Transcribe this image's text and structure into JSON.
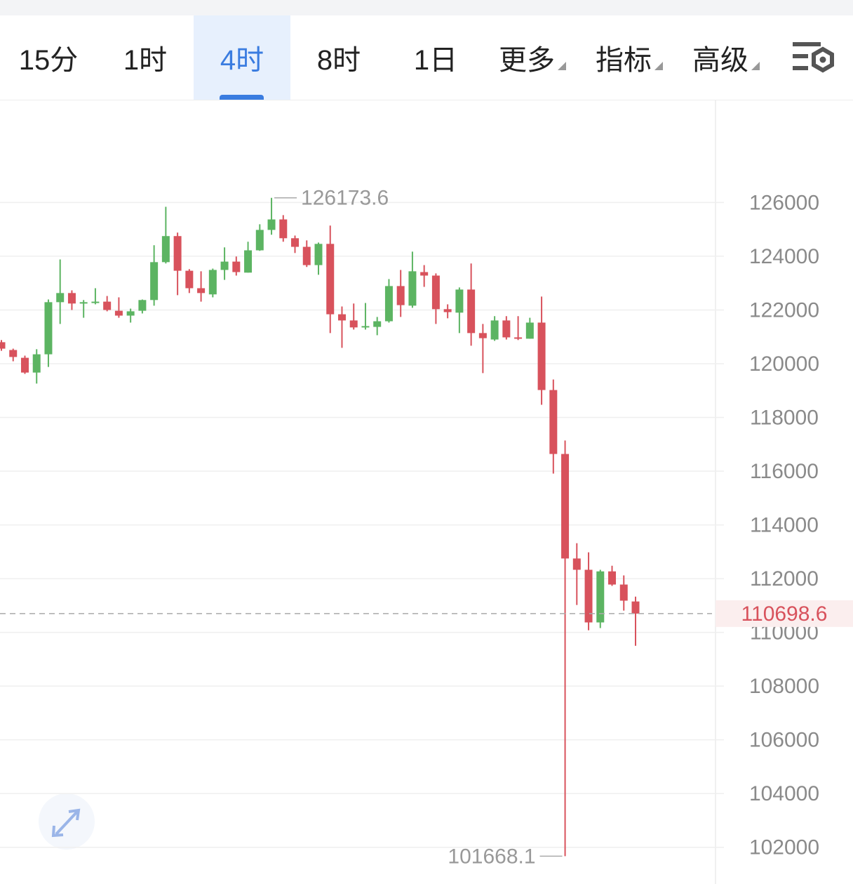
{
  "tabs": [
    {
      "label": "15分"
    },
    {
      "label": "1时"
    },
    {
      "label": "4时",
      "active": true
    },
    {
      "label": "8时"
    },
    {
      "label": "1日"
    },
    {
      "label": "更多",
      "menu": true
    },
    {
      "label": "指标",
      "menu": true
    },
    {
      "label": "高级",
      "menu": true
    }
  ],
  "chart_data": {
    "type": "candlestick",
    "up_color": "#5cb462",
    "down_color": "#d8525c",
    "ylim": [
      101000,
      129800
    ],
    "yticks": [
      102000,
      104000,
      106000,
      108000,
      110000,
      112000,
      114000,
      116000,
      118000,
      120000,
      122000,
      124000,
      126000
    ],
    "grid": true,
    "open": [
      120800,
      120510,
      120220,
      119670,
      120350,
      122290,
      122630,
      122260,
      122260,
      122310,
      121970,
      121790,
      121970,
      122370,
      123780,
      124750,
      123460,
      122810,
      122580,
      123490,
      123800,
      123390,
      124220,
      124980,
      125370,
      124670,
      124350,
      123670,
      124460,
      121840,
      121610,
      121350,
      121370,
      121580,
      122890,
      122160,
      123410,
      123280,
      122030,
      121900,
      122760,
      121140,
      120900,
      121610,
      120980,
      120930,
      121530,
      119020,
      116640,
      112750,
      112330,
      110370,
      112270,
      111780,
      111150
    ],
    "close": [
      120560,
      120250,
      119670,
      120350,
      122290,
      122630,
      122240,
      122290,
      122310,
      122000,
      121790,
      121950,
      122370,
      123780,
      124750,
      123460,
      122810,
      122630,
      123490,
      123800,
      123410,
      124220,
      124980,
      125370,
      124670,
      124350,
      123670,
      124460,
      121840,
      121610,
      121350,
      121400,
      121580,
      122890,
      122180,
      123440,
      123280,
      122030,
      121920,
      122760,
      121140,
      120950,
      121610,
      120980,
      120930,
      121530,
      119020,
      116640,
      112750,
      112330,
      110370,
      112270,
      111780,
      111180,
      110698.6
    ],
    "high": [
      120880,
      120560,
      120300,
      120540,
      122390,
      123880,
      122730,
      122370,
      122810,
      122520,
      122470,
      122050,
      122390,
      124410,
      125840,
      124880,
      123520,
      123440,
      123540,
      124330,
      123990,
      124540,
      125190,
      126173.6,
      125530,
      124770,
      124590,
      124510,
      125140,
      122130,
      122240,
      122260,
      121740,
      123150,
      123490,
      124170,
      123670,
      123360,
      122210,
      122840,
      123730,
      121480,
      121770,
      121770,
      121770,
      121710,
      122500,
      119410,
      117140,
      113320,
      112980,
      112330,
      112480,
      112120,
      111330
    ],
    "low": [
      120480,
      120090,
      119620,
      119260,
      119880,
      121480,
      122000,
      121710,
      122210,
      121950,
      121710,
      121530,
      121870,
      122160,
      123730,
      122550,
      122630,
      122310,
      122470,
      123120,
      123280,
      123390,
      124200,
      124800,
      124540,
      124120,
      123600,
      123310,
      121140,
      120590,
      121270,
      121270,
      121060,
      121530,
      121740,
      122080,
      122860,
      121480,
      121690,
      121140,
      120670,
      119650,
      120850,
      120900,
      120880,
      120930,
      118470,
      115910,
      101668.1,
      111020,
      110080,
      110160,
      111730,
      110810,
      109500
    ]
  }
}
